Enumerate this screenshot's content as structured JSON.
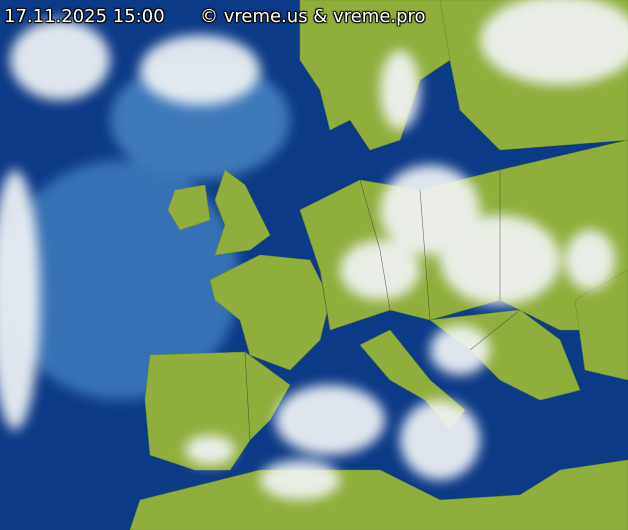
{
  "overlay": {
    "timestamp": "17.11.2025 15:00",
    "copyright": "© vreme.us & vreme.pro"
  },
  "colors": {
    "sea": "#0b3a86",
    "sea_shallow": "#2f6fb5",
    "land": "#8fae3c",
    "cloud": "#f2f4f6",
    "border": "#3b3b3b"
  }
}
